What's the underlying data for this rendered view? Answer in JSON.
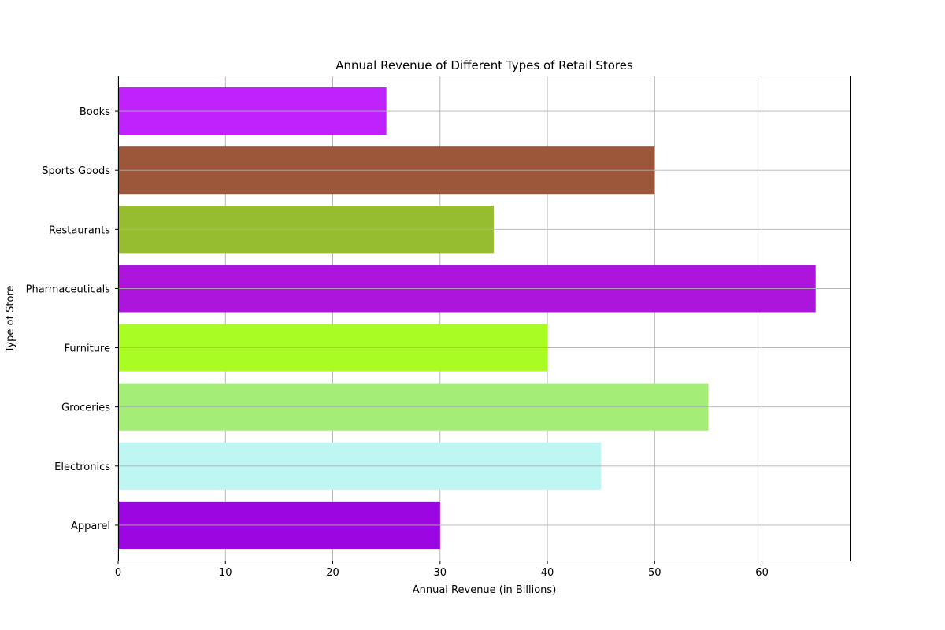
{
  "chart_data": {
    "type": "bar",
    "orientation": "horizontal",
    "title": "Annual Revenue of Different Types of Retail Stores",
    "xlabel": "Annual Revenue (in Billions)",
    "ylabel": "Type of Store",
    "categories": [
      "Apparel",
      "Electronics",
      "Groceries",
      "Furniture",
      "Pharmaceuticals",
      "Restaurants",
      "Sports Goods",
      "Books"
    ],
    "values": [
      30,
      45,
      55,
      40,
      65,
      35,
      50,
      25
    ],
    "colors": [
      "#9b06e1",
      "#bdf6f2",
      "#a4ee78",
      "#a9fd24",
      "#ad15dc",
      "#95bd2f",
      "#9c573a",
      "#bf22fd"
    ],
    "xlim": [
      0,
      68.25
    ],
    "xticks": [
      0,
      10,
      20,
      30,
      40,
      50,
      60
    ],
    "grid": true
  }
}
